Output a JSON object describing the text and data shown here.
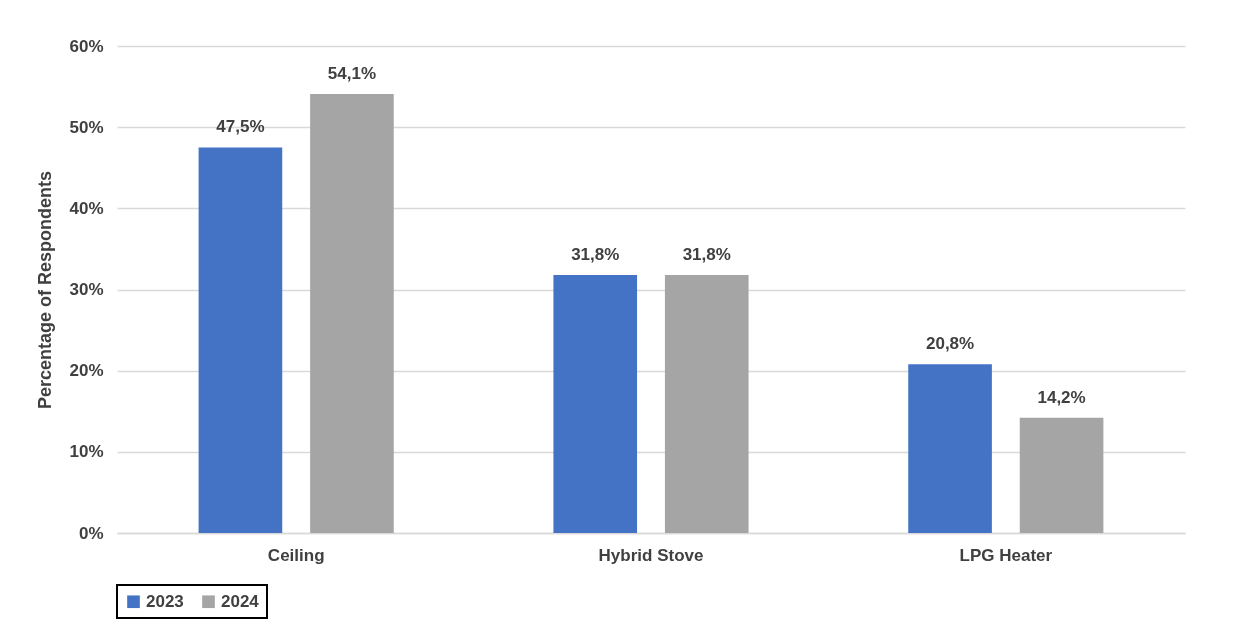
{
  "chart_data": {
    "type": "bar",
    "ylabel": "Percentage of Respondents",
    "categories": [
      "Ceiling",
      "Hybrid Stove",
      "LPG Heater"
    ],
    "series": [
      {
        "name": "2023",
        "color": "#4472c4",
        "values": [
          47.5,
          31.8,
          20.8
        ],
        "value_labels": [
          "47,5%",
          "31,8%",
          "20,8%"
        ]
      },
      {
        "name": "2024",
        "color": "#a5a5a5",
        "values": [
          54.1,
          31.8,
          14.2
        ],
        "value_labels": [
          "54,1%",
          "31,8%",
          "14,2%"
        ]
      }
    ],
    "ylim": [
      0,
      60
    ],
    "yticks": [
      {
        "value": 0,
        "label": "0%"
      },
      {
        "value": 10,
        "label": "10%"
      },
      {
        "value": 20,
        "label": "20%"
      },
      {
        "value": 30,
        "label": "30%"
      },
      {
        "value": 40,
        "label": "40%"
      },
      {
        "value": 50,
        "label": "50%"
      },
      {
        "value": 60,
        "label": "60%"
      }
    ],
    "grid": "y",
    "legend": "bottom"
  }
}
